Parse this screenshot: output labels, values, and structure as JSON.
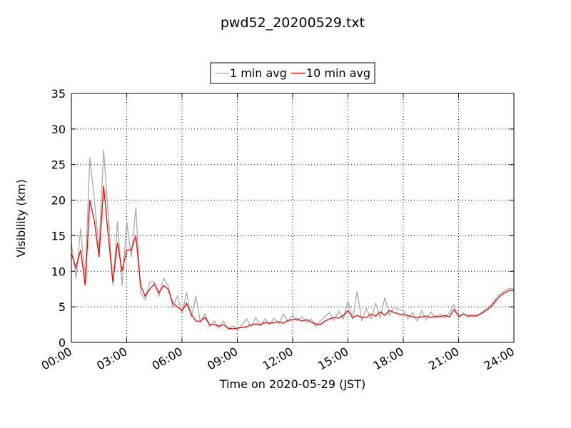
{
  "chart_data": {
    "type": "line",
    "title": "pwd52_20200529.txt",
    "x_label": "Time on 2020-05-29 (JST)",
    "y_label": "Visibility (km)",
    "x": [
      0,
      0.25,
      0.5,
      0.75,
      1,
      1.25,
      1.5,
      1.75,
      2,
      2.25,
      2.5,
      2.75,
      3,
      3.25,
      3.5,
      3.75,
      4,
      4.25,
      4.5,
      4.75,
      5,
      5.25,
      5.5,
      5.75,
      6,
      6.25,
      6.5,
      6.75,
      7,
      7.25,
      7.5,
      7.75,
      8,
      8.25,
      8.5,
      8.75,
      9,
      9.25,
      9.5,
      9.75,
      10,
      10.25,
      10.5,
      10.75,
      11,
      11.25,
      11.5,
      11.75,
      12,
      12.25,
      12.5,
      12.75,
      13,
      13.25,
      13.5,
      13.75,
      14,
      14.25,
      14.5,
      14.75,
      15,
      15.25,
      15.5,
      15.75,
      16,
      16.25,
      16.5,
      16.75,
      17,
      17.25,
      17.5,
      17.75,
      18,
      18.25,
      18.5,
      18.75,
      19,
      19.25,
      19.5,
      19.75,
      20,
      20.25,
      20.5,
      20.75,
      21,
      21.25,
      21.5,
      21.75,
      22,
      22.25,
      22.5,
      22.75,
      23,
      23.25,
      23.5,
      23.75,
      24
    ],
    "series": [
      {
        "name": "1 min avg",
        "color": "#aaaaaa",
        "values": [
          14,
          9,
          16,
          9,
          26,
          20,
          13,
          27,
          18,
          8,
          17,
          8,
          17,
          12,
          19,
          7,
          6,
          8.5,
          8.5,
          6.5,
          9,
          8,
          5,
          6.5,
          4,
          7,
          3.5,
          6.5,
          2.8,
          4,
          2.2,
          3,
          2,
          3,
          1.8,
          2.3,
          1.9,
          2.4,
          3.3,
          2.2,
          3.5,
          2.3,
          3.3,
          2.5,
          3.4,
          2.6,
          4,
          2.9,
          3.8,
          3,
          3.6,
          2.8,
          3.3,
          2.2,
          3,
          3.6,
          4.2,
          3.1,
          4.4,
          3.3,
          5.8,
          3.2,
          7.2,
          3,
          4.8,
          3.3,
          5.5,
          3.5,
          6.3,
          3.8,
          5,
          4.6,
          4.5,
          3.3,
          4.2,
          3,
          4.4,
          3.2,
          4.3,
          3.4,
          4,
          3.4,
          4.1,
          5.3,
          3.4,
          4.2,
          3.5,
          3.9,
          3.6,
          4.2,
          4.7,
          5.2,
          6.1,
          6.8,
          7.3,
          7.6,
          7.5
        ]
      },
      {
        "name": "10 min avg",
        "color": "#ff0000",
        "values": [
          12.5,
          10.5,
          13,
          8,
          20,
          17,
          12,
          22,
          15,
          8.5,
          14,
          10,
          13,
          13,
          15,
          8,
          6.5,
          7.5,
          8.2,
          7,
          8,
          7.5,
          5.5,
          5,
          4.5,
          5.5,
          4,
          3,
          3,
          3.5,
          2.5,
          2.5,
          2.3,
          2.5,
          2,
          1.9,
          2,
          2.1,
          2.2,
          2.5,
          2.6,
          2.5,
          2.8,
          2.7,
          2.8,
          2.9,
          2.7,
          3.1,
          3.2,
          3.3,
          3,
          3.2,
          2.9,
          2.6,
          2.5,
          3,
          3.3,
          3.5,
          3.4,
          3.8,
          4.5,
          3.5,
          3.8,
          3.5,
          3.5,
          4,
          3.7,
          4.3,
          3.8,
          4.5,
          4.2,
          4,
          3.9,
          3.8,
          3.6,
          3.5,
          3.6,
          3.7,
          3.5,
          3.7,
          3.6,
          3.8,
          3.6,
          4.6,
          3.7,
          3.9,
          3.8,
          3.7,
          3.8,
          4.1,
          4.5,
          5,
          5.8,
          6.5,
          7,
          7.3,
          7.3
        ]
      }
    ],
    "xlim": [
      0,
      24
    ],
    "xticks": [
      {
        "value": 0,
        "label": "00:00"
      },
      {
        "value": 3,
        "label": "03:00"
      },
      {
        "value": 6,
        "label": "06:00"
      },
      {
        "value": 9,
        "label": "09:00"
      },
      {
        "value": 12,
        "label": "12:00"
      },
      {
        "value": 15,
        "label": "15:00"
      },
      {
        "value": 18,
        "label": "18:00"
      },
      {
        "value": 21,
        "label": "21:00"
      },
      {
        "value": 24,
        "label": "24:00"
      }
    ],
    "ylim": [
      0,
      35
    ],
    "yticks": [
      0,
      5,
      10,
      15,
      20,
      25,
      30,
      35
    ],
    "grid": true,
    "legend": "top"
  }
}
